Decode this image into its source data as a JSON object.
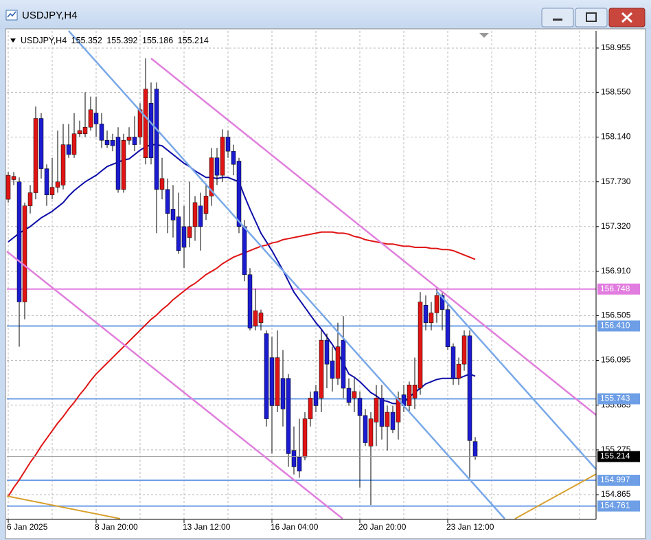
{
  "window": {
    "title": "USDJPY,H4"
  },
  "chart_data": {
    "type": "candlestick",
    "symbol": "USDJPY,H4",
    "categories": [
      "6 Jan 2025",
      null,
      null,
      null,
      null,
      null,
      null,
      null,
      null,
      null,
      null,
      null,
      null,
      null,
      null,
      null,
      "8 Jan 20:00",
      null,
      null,
      null,
      null,
      null,
      null,
      null,
      null,
      null,
      null,
      null,
      null,
      null,
      null,
      null,
      "13 Jan 12:00",
      null,
      null,
      null,
      null,
      null,
      null,
      null,
      null,
      null,
      null,
      null,
      null,
      null,
      null,
      null,
      "16 Jan 04:00",
      null,
      null,
      null,
      null,
      null,
      null,
      null,
      null,
      null,
      null,
      null,
      null,
      null,
      null,
      null,
      "20 Jan 20:00",
      null,
      null,
      null,
      null,
      null,
      null,
      null,
      null,
      null,
      null,
      null,
      null,
      null,
      null,
      null,
      "23 Jan 12:00",
      null,
      null,
      null,
      null,
      null
    ],
    "open": [
      157.57,
      157.75,
      157.73,
      156.63,
      157.51,
      157.63,
      158.31,
      157.85,
      157.61,
      157.68,
      157.7,
      158.07,
      157.98,
      158.17,
      158.17,
      158.23,
      158.36,
      158.26,
      158.11,
      158.11,
      158.14,
      157.66,
      158.11,
      158.14,
      158.14,
      157.95,
      158.45,
      158.58,
      157.66,
      157.66,
      157.48,
      157.41,
      157.32,
      157.22,
      157.32,
      157.51,
      157.44,
      157.6,
      157.95,
      157.79,
      158.14,
      158.01,
      157.92,
      157.32,
      156.88,
      156.41,
      156.44,
      156.34,
      156.12,
      155.68,
      155.93,
      155.93,
      155.27,
      155.21,
      155.21,
      155.56,
      155.81,
      155.75,
      156.28,
      156.09,
      155.93,
      156.28,
      155.84,
      155.75,
      155.75,
      155.59,
      155.31,
      155.53,
      155.75,
      155.49,
      155.62,
      155.53,
      155.78,
      155.68,
      155.75,
      155.84,
      156.6,
      156.44,
      156.53,
      156.69,
      156.56,
      156.22,
      155.93,
      156.06,
      156.32,
      155.352
    ],
    "high": [
      157.82,
      157.82,
      157.77,
      157.54,
      157.7,
      158.42,
      158.36,
      157.89,
      157.95,
      158.2,
      158.26,
      158.26,
      158.36,
      158.29,
      158.55,
      158.51,
      158.51,
      158.36,
      158.2,
      158.17,
      158.23,
      158.17,
      158.23,
      158.33,
      158.45,
      158.86,
      158.64,
      158.64,
      157.95,
      157.76,
      157.7,
      157.63,
      157.51,
      157.73,
      157.6,
      157.63,
      157.7,
      158.04,
      158.04,
      158.21,
      158.2,
      158.07,
      157.95,
      157.38,
      156.94,
      156.75,
      156.56,
      156.37,
      156.31,
      156.37,
      156.19,
      155.97,
      155.49,
      155.56,
      155.62,
      155.81,
      155.87,
      156.37,
      156.34,
      156.22,
      156.44,
      156.5,
      155.93,
      155.93,
      155.81,
      155.65,
      155.62,
      155.87,
      155.87,
      155.68,
      155.68,
      155.81,
      155.87,
      155.9,
      156.12,
      156.72,
      156.69,
      156.63,
      156.75,
      156.72,
      156.63,
      156.25,
      156.12,
      156.37,
      156.37,
      155.392
    ],
    "low": [
      157.54,
      157.7,
      156.22,
      156.47,
      157.44,
      157.57,
      157.76,
      157.51,
      157.57,
      157.63,
      157.66,
      157.95,
      157.95,
      158.14,
      158.14,
      158.2,
      158.14,
      158.04,
      158.04,
      158.01,
      157.63,
      157.63,
      158.07,
      158.01,
      158.07,
      157.89,
      157.89,
      157.26,
      157.57,
      157.26,
      157.22,
      157.07,
      156.94,
      157.13,
      157.19,
      157.1,
      157.38,
      157.51,
      157.7,
      157.73,
      157.95,
      157.79,
      157.26,
      156.82,
      156.37,
      156.37,
      156.37,
      155.49,
      155.24,
      155.62,
      155.49,
      155.12,
      155.05,
      155.02,
      155.18,
      155.49,
      155.62,
      155.62,
      155.84,
      155.81,
      155.87,
      155.75,
      155.68,
      155.62,
      154.93,
      155.31,
      154.77,
      155.31,
      155.37,
      155.27,
      155.43,
      155.37,
      155.62,
      155.62,
      155.65,
      155.78,
      156.37,
      156.37,
      156.44,
      156.37,
      156.19,
      155.87,
      155.87,
      156.0,
      155.02,
      155.186
    ],
    "close": [
      157.79,
      157.78,
      156.63,
      157.51,
      157.63,
      158.31,
      157.85,
      157.61,
      157.68,
      157.73,
      158.07,
      157.98,
      158.17,
      158.2,
      158.23,
      158.39,
      158.26,
      158.11,
      158.07,
      158.06,
      157.66,
      158.11,
      158.14,
      158.07,
      158.39,
      158.58,
      157.95,
      157.66,
      157.76,
      157.44,
      157.38,
      157.1,
      157.13,
      157.32,
      157.54,
      157.32,
      157.6,
      157.95,
      157.79,
      158.14,
      158.01,
      157.89,
      157.32,
      156.88,
      156.39,
      156.55,
      156.53,
      155.56,
      155.68,
      156.12,
      155.65,
      155.24,
      155.12,
      155.08,
      155.56,
      155.75,
      155.68,
      156.28,
      156.06,
      155.93,
      156.22,
      155.84,
      155.71,
      155.81,
      155.59,
      155.34,
      155.56,
      155.75,
      155.49,
      155.62,
      155.46,
      155.75,
      155.68,
      155.87,
      155.87,
      156.63,
      156.44,
      156.53,
      156.69,
      156.56,
      156.22,
      155.93,
      156.06,
      156.32,
      155.36,
      155.214
    ],
    "up_color": "#e01414",
    "down_color": "#1b1bd0",
    "series": [
      {
        "color": "#0c0ca8",
        "values": [
          157.18,
          157.22,
          157.26,
          157.29,
          157.32,
          157.36,
          157.4,
          157.43,
          157.46,
          157.5,
          157.54,
          157.6,
          157.65,
          157.69,
          157.73,
          157.76,
          157.79,
          157.83,
          157.87,
          157.89,
          157.91,
          157.93,
          157.94,
          157.98,
          158.02,
          158.05,
          158.07,
          158.07,
          158.06,
          158.02,
          157.98,
          157.94,
          157.9,
          157.87,
          157.83,
          157.8,
          157.77,
          157.77,
          157.76,
          157.77,
          157.77,
          157.75,
          157.73,
          157.6,
          157.48,
          157.37,
          157.26,
          157.18,
          157.1,
          157.01,
          156.92,
          156.82,
          156.72,
          156.65,
          156.58,
          156.51,
          156.44,
          156.38,
          156.31,
          156.24,
          156.16,
          156.07,
          155.97,
          155.94,
          155.9,
          155.85,
          155.8,
          155.77,
          155.73,
          155.72,
          155.7,
          155.7,
          155.71,
          155.76,
          155.8,
          155.84,
          155.88,
          155.9,
          155.92,
          155.93,
          155.93,
          155.93,
          155.93,
          155.95,
          155.97,
          155.95
        ]
      },
      {
        "color": "#e01414",
        "values": [
          154.85,
          154.93,
          155.0,
          155.08,
          155.16,
          155.23,
          155.31,
          155.38,
          155.45,
          155.52,
          155.58,
          155.65,
          155.71,
          155.78,
          155.84,
          155.91,
          155.97,
          156.02,
          156.07,
          156.12,
          156.17,
          156.22,
          156.27,
          156.32,
          156.37,
          156.42,
          156.47,
          156.51,
          156.56,
          156.6,
          156.65,
          156.69,
          156.73,
          156.77,
          156.8,
          156.84,
          156.88,
          156.91,
          156.94,
          156.98,
          157.01,
          157.04,
          157.06,
          157.08,
          157.1,
          157.12,
          157.14,
          157.15,
          157.17,
          157.18,
          157.2,
          157.21,
          157.22,
          157.23,
          157.24,
          157.25,
          157.26,
          157.27,
          157.27,
          157.27,
          157.26,
          157.26,
          157.25,
          157.23,
          157.22,
          157.2,
          157.19,
          157.18,
          157.17,
          157.16,
          157.16,
          157.15,
          157.14,
          157.14,
          157.13,
          157.13,
          157.13,
          157.12,
          157.12,
          157.11,
          157.11,
          157.1,
          157.08,
          157.06,
          157.04,
          157.02
        ]
      }
    ],
    "hlines": [
      {
        "value": 156.748,
        "color": "#e27de0"
      },
      {
        "value": 156.41,
        "label": "156.410",
        "color": "#6e9fe6"
      },
      {
        "value": 155.743,
        "color": "#6e9fe6"
      },
      {
        "value": 154.997,
        "color": "#6e9fe6"
      },
      {
        "value": 154.761,
        "color": "#6e9fe6"
      }
    ],
    "ylim": [
      154.645,
      159.112
    ],
    "yticks": [
      158.955,
      {
        "value": 158.55,
        "label": "158.550"
      },
      {
        "value": 158.14,
        "label": "158.140"
      },
      {
        "value": 157.73,
        "label": "157.730"
      },
      {
        "value": 157.32,
        "label": "157.320"
      },
      {
        "value": 156.91,
        "label": "156.910"
      },
      156.505,
      156.095,
      155.685,
      155.275,
      154.865
    ],
    "grid": true
  }
}
